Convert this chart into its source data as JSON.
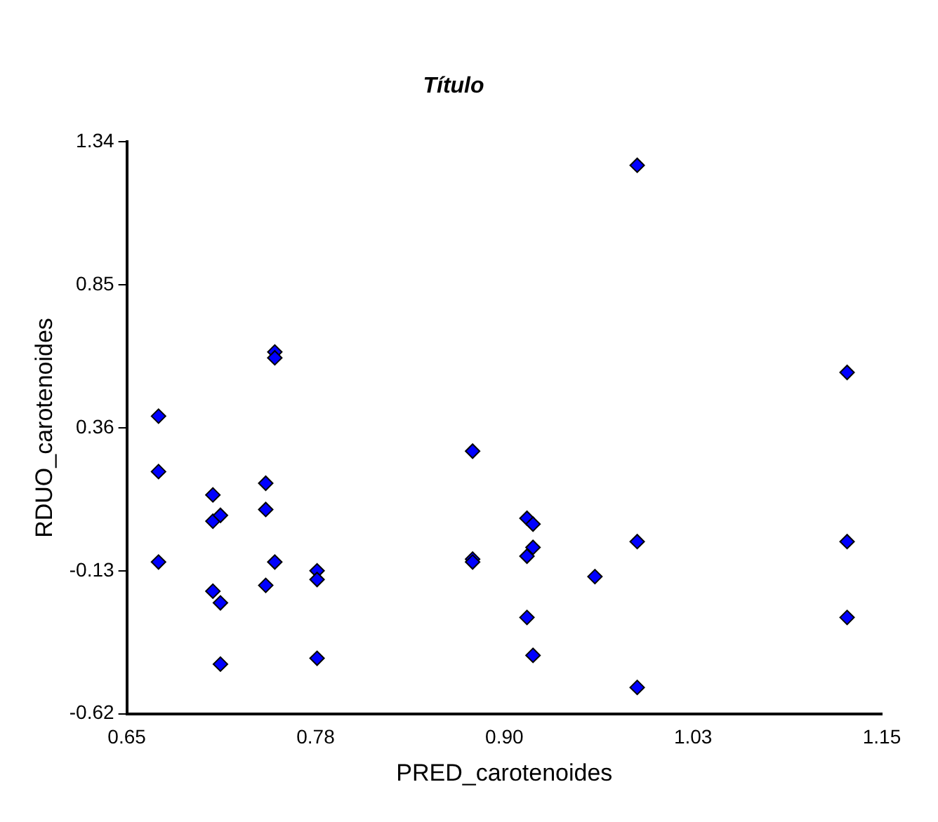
{
  "chart_data": {
    "type": "scatter",
    "title": "Título",
    "xlabel": "PRED_carotenoides",
    "ylabel": "RDUO_carotenoides",
    "x": [
      0.671,
      0.671,
      0.671,
      0.707,
      0.707,
      0.712,
      0.707,
      0.712,
      0.712,
      0.742,
      0.742,
      0.742,
      0.748,
      0.748,
      0.748,
      0.776,
      0.776,
      0.776,
      0.879,
      0.879,
      0.879,
      0.915,
      0.919,
      0.915,
      0.919,
      0.915,
      0.919,
      0.96,
      0.988,
      0.988,
      0.988,
      1.127,
      1.127,
      1.127
    ],
    "series": [
      {
        "color": "#0000ff",
        "values": [
          0.4,
          0.21,
          -0.1,
          0.13,
          0.04,
          0.06,
          -0.2,
          -0.24,
          -0.45,
          0.17,
          0.08,
          -0.18,
          -0.1,
          0.62,
          0.6,
          -0.13,
          -0.16,
          -0.43,
          0.28,
          -0.09,
          -0.1,
          0.05,
          0.03,
          -0.08,
          -0.05,
          -0.29,
          -0.42,
          -0.15,
          1.26,
          -0.03,
          -0.53,
          0.55,
          -0.03,
          -0.29
        ]
      }
    ],
    "xlim": [
      0.65,
      1.15
    ],
    "xticks": [
      0.65,
      {
        "value": 0.775,
        "label": "0.78"
      },
      {
        "value": 0.9,
        "label": "0.90"
      },
      {
        "value": 1.025,
        "label": "1.03"
      },
      1.15
    ],
    "ylim": [
      -0.62,
      1.34
    ],
    "yticks": [
      -0.62,
      -0.13,
      0.36,
      0.85,
      1.34
    ],
    "grid": false,
    "legend": false,
    "marker": "diamond"
  }
}
